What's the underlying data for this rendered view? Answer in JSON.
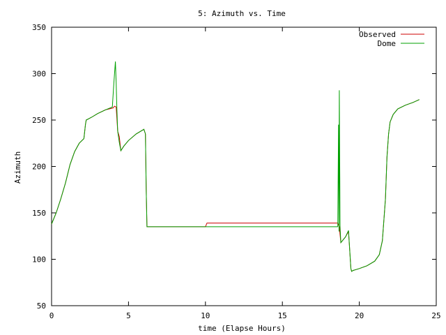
{
  "chart_data": {
    "type": "line",
    "title": "5: Azimuth vs. Time",
    "xlabel": "time (Elapse Hours)",
    "ylabel": "Azimuth",
    "xlim": [
      0,
      25
    ],
    "ylim": [
      50,
      350
    ],
    "xticks": [
      0,
      5,
      10,
      15,
      20,
      25
    ],
    "yticks": [
      50,
      100,
      150,
      200,
      250,
      300,
      350
    ],
    "grid": false,
    "legend": "top-right",
    "series": [
      {
        "name": "Observed",
        "color": "#cc0000",
        "x": [
          0,
          0.3,
          0.6,
          0.9,
          1.2,
          1.5,
          1.8,
          2.1,
          2.2,
          2.25,
          2.6,
          3.0,
          3.5,
          4.0,
          4.1,
          4.2,
          4.3,
          4.4,
          4.5,
          4.7,
          5.0,
          5.5,
          6.0,
          6.1,
          6.15,
          6.2,
          7.0,
          8.0,
          9.0,
          9.8,
          10.0,
          10.1,
          11.0,
          13.0,
          15.0,
          17.0,
          18.5,
          18.6,
          18.7,
          18.8,
          18.9,
          19.1,
          19.3,
          19.45,
          19.5,
          19.6,
          20.0,
          20.5,
          21.0,
          21.3,
          21.5,
          21.7,
          21.8,
          21.9,
          22.0,
          22.2,
          22.5,
          23.0,
          23.5,
          23.9
        ],
        "y": [
          138,
          150,
          165,
          182,
          202,
          216,
          225,
          230,
          245,
          250,
          253,
          257,
          261,
          263,
          265,
          264,
          238,
          232,
          217,
          222,
          228,
          235,
          240,
          235,
          175,
          135,
          135,
          135,
          135,
          135,
          135,
          139,
          139,
          139,
          139,
          139,
          139,
          139,
          135,
          118,
          120,
          124,
          130,
          90,
          87,
          88,
          90,
          93,
          98,
          105,
          120,
          165,
          210,
          235,
          248,
          256,
          262,
          266,
          269,
          272
        ]
      },
      {
        "name": "Dome",
        "color": "#00a000",
        "x": [
          0,
          0.3,
          0.6,
          0.9,
          1.2,
          1.5,
          1.8,
          2.1,
          2.2,
          2.25,
          2.6,
          3.0,
          3.5,
          3.95,
          4.05,
          4.15,
          4.2,
          4.25,
          4.3,
          4.35,
          4.4,
          4.5,
          4.7,
          5.0,
          5.5,
          6.0,
          6.1,
          6.15,
          6.2,
          7.0,
          8.0,
          9.0,
          9.8,
          10.0,
          10.1,
          11.0,
          13.0,
          15.0,
          17.0,
          18.5,
          18.6,
          18.65,
          18.68,
          18.7,
          18.75,
          18.8,
          18.9,
          19.1,
          19.3,
          19.45,
          19.5,
          19.6,
          20.0,
          20.5,
          21.0,
          21.3,
          21.5,
          21.7,
          21.8,
          21.9,
          22.0,
          22.2,
          22.5,
          23.0,
          23.5,
          23.9
        ],
        "y": [
          138,
          150,
          165,
          182,
          202,
          216,
          225,
          230,
          245,
          250,
          253,
          257,
          261,
          264,
          290,
          313,
          290,
          260,
          238,
          232,
          226,
          217,
          222,
          228,
          235,
          240,
          235,
          175,
          135,
          135,
          135,
          135,
          135,
          135,
          135,
          135,
          135,
          135,
          135,
          135,
          135,
          245,
          130,
          282,
          135,
          118,
          120,
          124,
          131,
          90,
          87,
          88,
          90,
          93,
          98,
          105,
          120,
          165,
          210,
          235,
          248,
          256,
          262,
          266,
          269,
          272
        ]
      }
    ]
  }
}
